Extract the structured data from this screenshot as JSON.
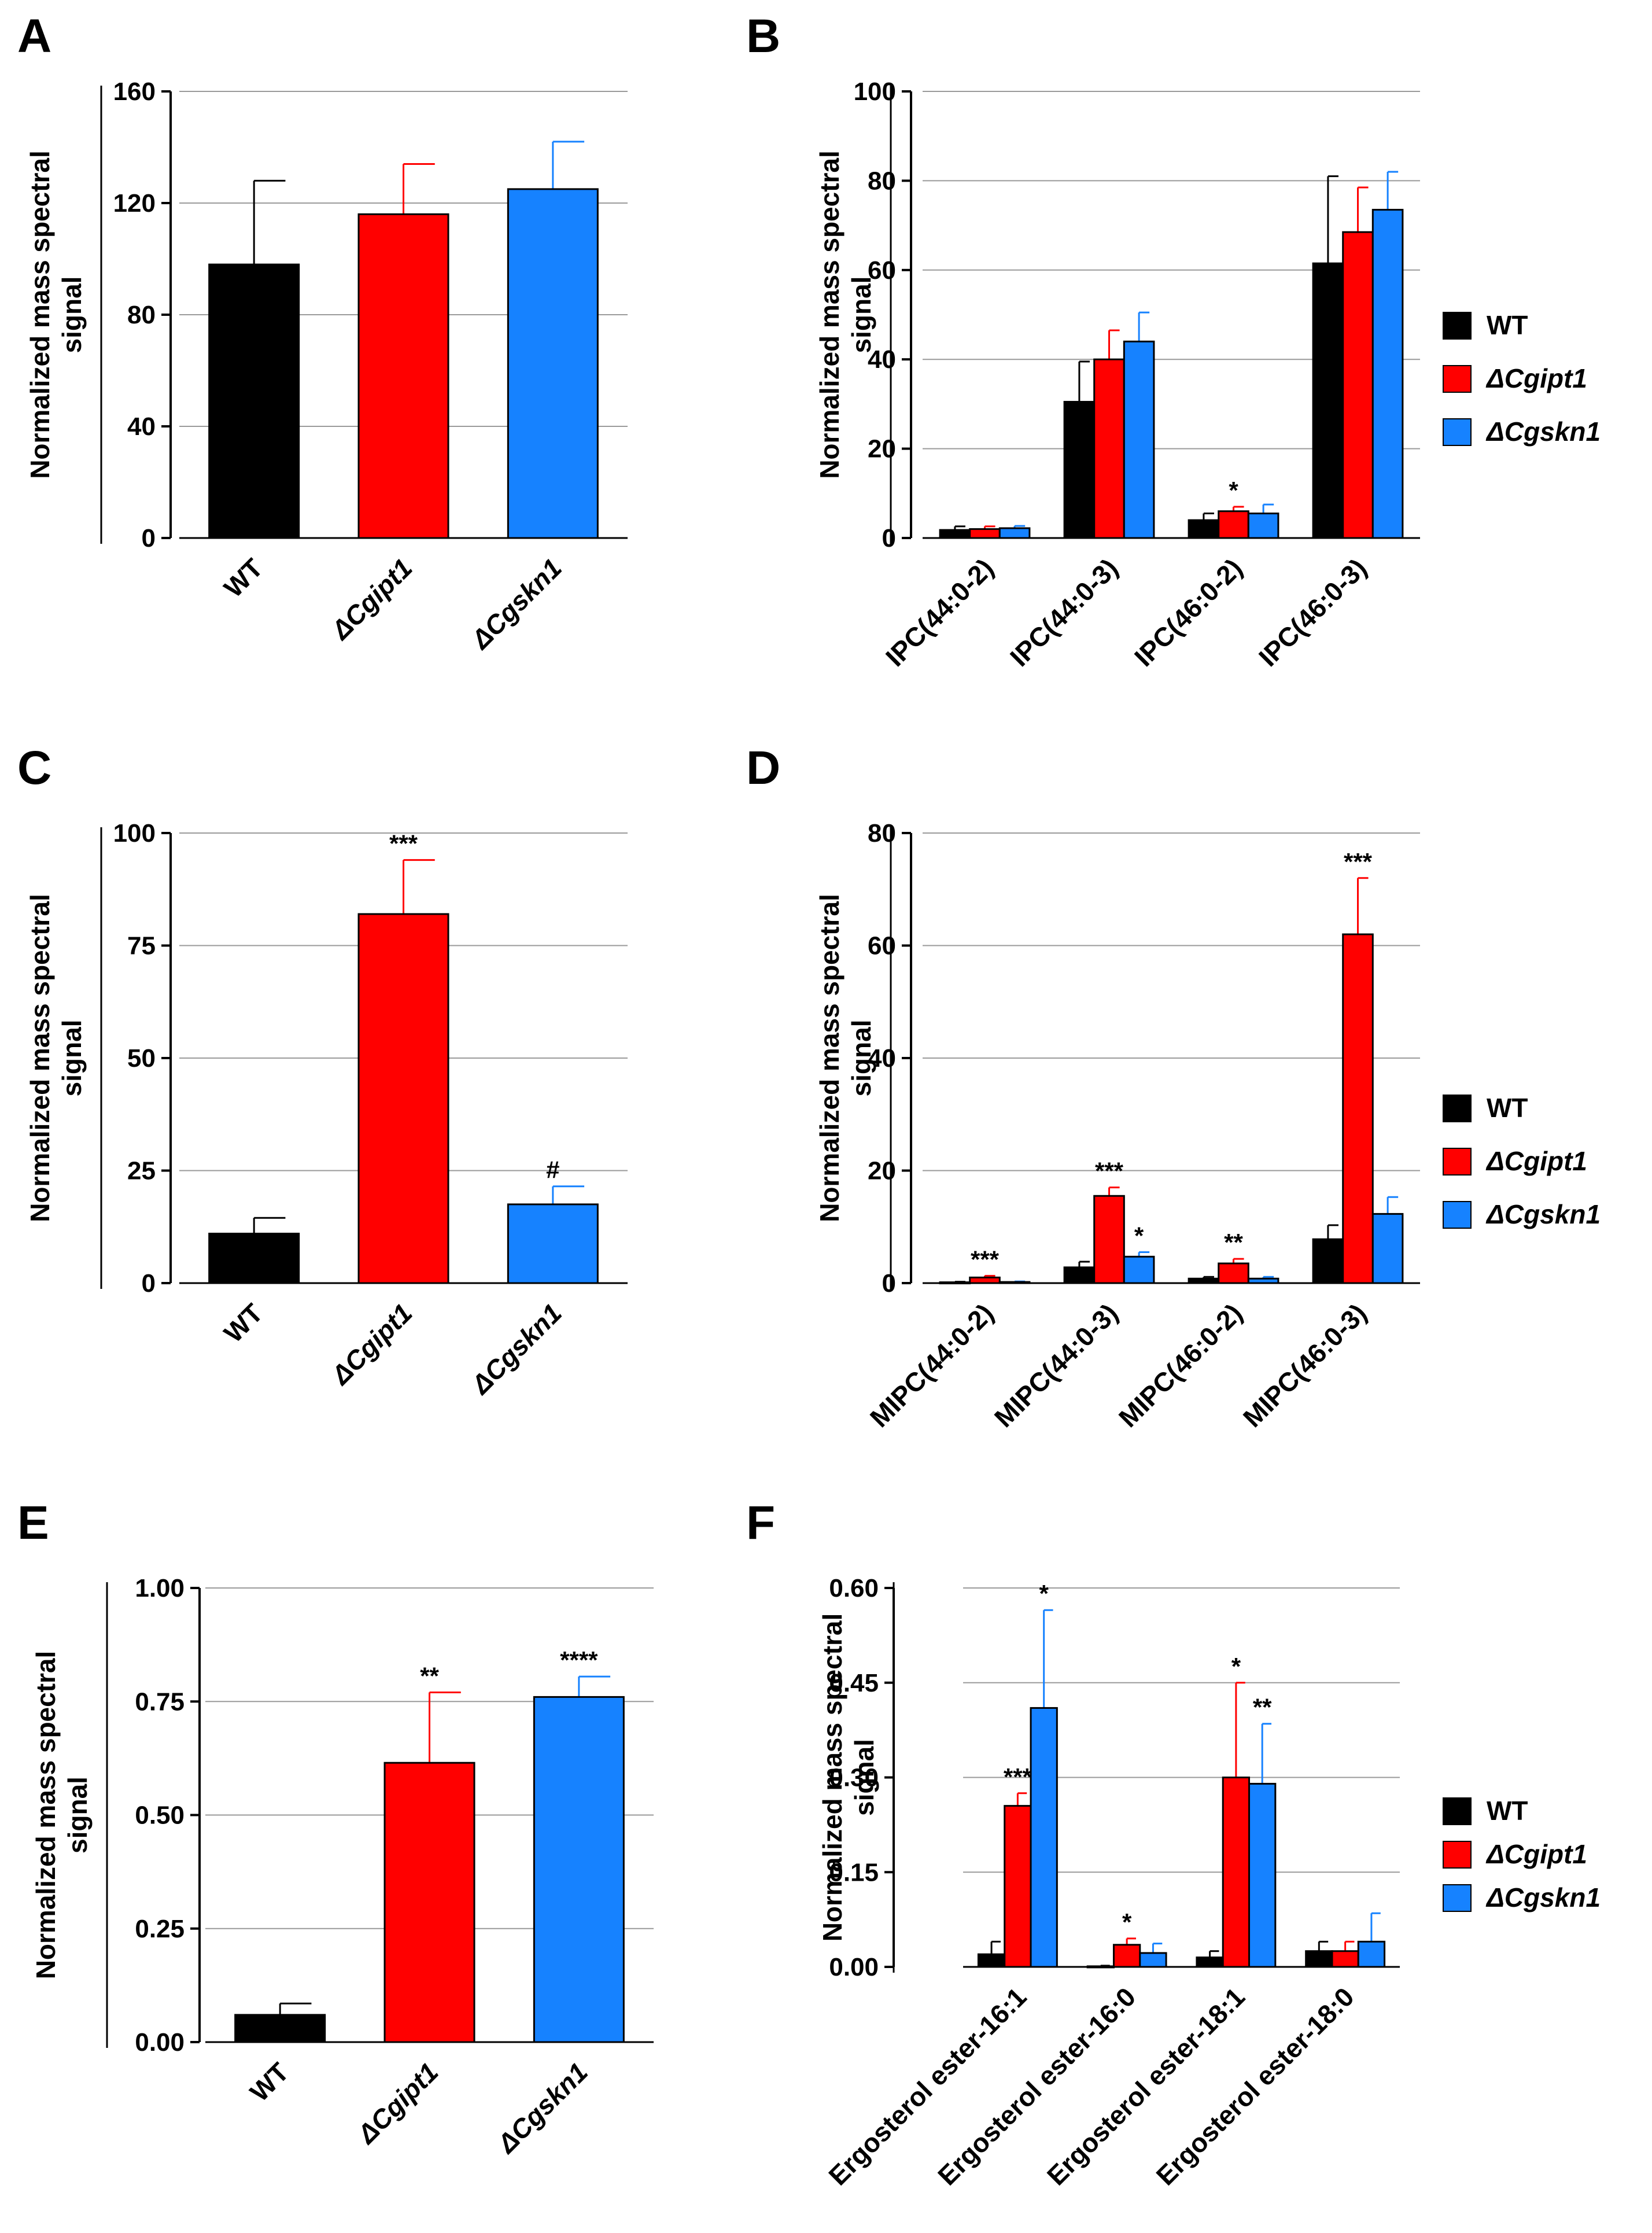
{
  "colors": {
    "WT": "#000000",
    "ipt": "#ff0000",
    "skn": "#1682ff",
    "grid": "#9a9a9a",
    "axis": "#000000"
  },
  "chart_data": [
    {
      "panel": "A",
      "type": "bar",
      "ylabel_line1": "Normalized mass spectral",
      "ylabel_line2": "signal",
      "ylim": [
        0,
        160
      ],
      "yticks": [
        "0",
        "40",
        "80",
        "120",
        "160"
      ],
      "tick_values": [
        0,
        40,
        80,
        120,
        160
      ],
      "categories": [
        "WT",
        "ΔCgipt1",
        "ΔCgskn1"
      ],
      "italic_categories": [
        false,
        true,
        true
      ],
      "series": [
        {
          "name": "",
          "colors": [
            "WT",
            "ipt",
            "skn"
          ],
          "values": [
            98,
            116,
            125
          ],
          "errors": [
            30,
            18,
            17
          ]
        }
      ],
      "annotations": [
        "",
        "",
        ""
      ],
      "legend": null
    },
    {
      "panel": "B",
      "type": "bar",
      "ylabel_line1": "Normalized mass spectral",
      "ylabel_line2": "signal",
      "ylim": [
        0,
        100
      ],
      "yticks": [
        "0",
        "20",
        "40",
        "60",
        "80",
        "100"
      ],
      "tick_values": [
        0,
        20,
        40,
        60,
        80,
        100
      ],
      "categories": [
        "IPC(44:0-2)",
        "IPC(44:0-3)",
        "IPC(46:0-2)",
        "IPC(46:0-3)"
      ],
      "italic_categories": [
        false,
        false,
        false,
        false
      ],
      "series": [
        {
          "name": "WT",
          "color": "WT",
          "values": [
            1.8,
            30.5,
            4.0,
            61.5
          ],
          "errors": [
            0.8,
            9.0,
            1.5,
            19.5
          ],
          "annotations": [
            "",
            "",
            "",
            ""
          ]
        },
        {
          "name": "ΔCgipt1",
          "color": "ipt",
          "values": [
            2.0,
            40.0,
            6.0,
            68.5
          ],
          "errors": [
            0.6,
            6.5,
            1.0,
            10.0
          ],
          "annotations": [
            "",
            "",
            "*",
            ""
          ]
        },
        {
          "name": "ΔCgskn1",
          "color": "skn",
          "values": [
            2.2,
            44.0,
            5.5,
            73.5
          ],
          "errors": [
            0.5,
            6.5,
            2.0,
            8.5
          ],
          "annotations": [
            "",
            "",
            "",
            ""
          ]
        }
      ],
      "legend": {
        "entries": [
          "WT",
          "ΔCgipt1",
          "ΔCgskn1"
        ]
      }
    },
    {
      "panel": "C",
      "type": "bar",
      "ylabel_line1": "Normalized mass spectral",
      "ylabel_line2": "signal",
      "ylim": [
        0,
        100
      ],
      "yticks": [
        "0",
        "25",
        "50",
        "75",
        "100"
      ],
      "tick_values": [
        0,
        25,
        50,
        75,
        100
      ],
      "categories": [
        "WT",
        "ΔCgipt1",
        "ΔCgskn1"
      ],
      "italic_categories": [
        false,
        true,
        true
      ],
      "series": [
        {
          "name": "",
          "colors": [
            "WT",
            "ipt",
            "skn"
          ],
          "values": [
            11,
            82,
            17.5
          ],
          "errors": [
            3.5,
            12,
            4.0
          ]
        }
      ],
      "annotations": [
        "",
        "***",
        "#"
      ],
      "legend": null
    },
    {
      "panel": "D",
      "type": "bar",
      "ylabel_line1": "Normalized mass spectral",
      "ylabel_line2": "signal",
      "ylim": [
        0,
        80
      ],
      "yticks": [
        "0",
        "20",
        "40",
        "60",
        "80"
      ],
      "tick_values": [
        0,
        20,
        40,
        60,
        80
      ],
      "categories": [
        "MIPC(44:0-2)",
        "MIPC(44:0-3)",
        "MIPC(46:0-2)",
        "MIPC(46:0-3)"
      ],
      "italic_categories": [
        false,
        false,
        false,
        false
      ],
      "series": [
        {
          "name": "WT",
          "color": "WT",
          "values": [
            0.15,
            2.8,
            0.8,
            7.8
          ],
          "errors": [
            0.1,
            1.0,
            0.3,
            2.5
          ],
          "annotations": [
            "",
            "",
            "",
            ""
          ]
        },
        {
          "name": "ΔCgipt1",
          "color": "ipt",
          "values": [
            1.0,
            15.5,
            3.5,
            62.0
          ],
          "errors": [
            0.3,
            1.5,
            0.8,
            10.0
          ],
          "annotations": [
            "***",
            "***",
            "**",
            "***"
          ]
        },
        {
          "name": "ΔCgskn1",
          "color": "skn",
          "values": [
            0.2,
            4.7,
            0.8,
            12.3
          ],
          "errors": [
            0.1,
            0.8,
            0.3,
            3.0
          ],
          "annotations": [
            "",
            "*",
            "",
            ""
          ]
        }
      ],
      "legend": {
        "entries": [
          "WT",
          "ΔCgipt1",
          "ΔCgskn1"
        ]
      }
    },
    {
      "panel": "E",
      "type": "bar",
      "ylabel_line1": "Normalized mass spectral",
      "ylabel_line2": "signal",
      "ylim": [
        0,
        1.0
      ],
      "yticks": [
        "0.00",
        "0.25",
        "0.50",
        "0.75",
        "1.00"
      ],
      "tick_values": [
        0,
        0.25,
        0.5,
        0.75,
        1.0
      ],
      "categories": [
        "WT",
        "ΔCgipt1",
        "ΔCgskn1"
      ],
      "italic_categories": [
        false,
        true,
        true
      ],
      "series": [
        {
          "name": "",
          "colors": [
            "WT",
            "ipt",
            "skn"
          ],
          "values": [
            0.06,
            0.615,
            0.76
          ],
          "errors": [
            0.025,
            0.155,
            0.045
          ]
        }
      ],
      "annotations": [
        "",
        "**",
        "****"
      ],
      "legend": null
    },
    {
      "panel": "F",
      "type": "bar",
      "ylabel_line1": "Normalized mass spectral",
      "ylabel_line2": "signal",
      "ylim": [
        0,
        0.6
      ],
      "yticks": [
        "0.00",
        "0.15",
        "0.30",
        "0.45",
        "0.60"
      ],
      "tick_values": [
        0,
        0.15,
        0.3,
        0.45,
        0.6
      ],
      "categories": [
        "Ergosterol ester-16:1",
        "Ergosterol ester-16:0",
        "Ergosterol ester-18:1",
        "Ergosterol ester-18:0"
      ],
      "italic_categories": [
        false,
        false,
        false,
        false
      ],
      "series": [
        {
          "name": "WT",
          "color": "WT",
          "values": [
            0.02,
            0.001,
            0.015,
            0.025
          ],
          "errors": [
            0.02,
            0.001,
            0.01,
            0.015
          ],
          "annotations": [
            "",
            "",
            "",
            ""
          ]
        },
        {
          "name": "ΔCgipt1",
          "color": "ipt",
          "values": [
            0.255,
            0.035,
            0.3,
            0.025
          ],
          "errors": [
            0.02,
            0.01,
            0.15,
            0.015
          ],
          "annotations": [
            "***",
            "*",
            "*",
            ""
          ]
        },
        {
          "name": "ΔCgskn1",
          "color": "skn",
          "values": [
            0.41,
            0.022,
            0.29,
            0.04
          ],
          "errors": [
            0.155,
            0.015,
            0.095,
            0.045
          ],
          "annotations": [
            "*",
            "",
            "**",
            ""
          ]
        }
      ],
      "legend": {
        "entries": [
          "WT",
          "ΔCgipt1",
          "ΔCgskn1"
        ]
      }
    }
  ]
}
